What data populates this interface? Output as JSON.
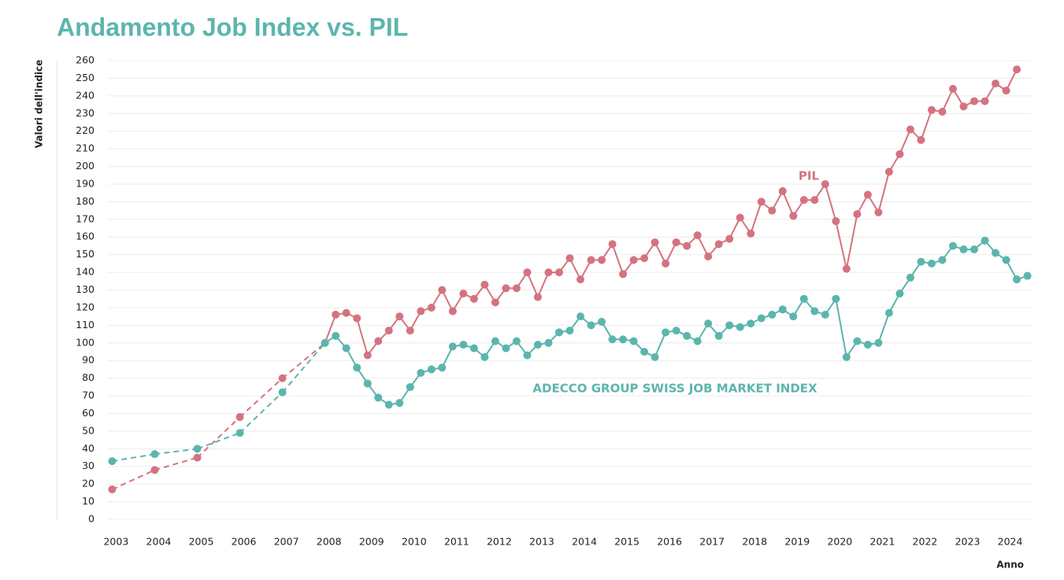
{
  "chart_data": {
    "type": "line",
    "title": "Andamento Job Index vs. PIL",
    "y_label": "Valori dell'indice",
    "x_label": "Anno",
    "dashed_until": 2008,
    "grid": true,
    "xlim": [
      2002.9,
      2024.6
    ],
    "xticks": [
      2003,
      2004,
      2005,
      2006,
      2007,
      2008,
      2009,
      2010,
      2011,
      2012,
      2013,
      2014,
      2015,
      2016,
      2017,
      2018,
      2019,
      2020,
      2021,
      2022,
      2023,
      2024
    ],
    "ylim": [
      0,
      260
    ],
    "yticks": [
      0,
      10,
      20,
      30,
      40,
      50,
      60,
      70,
      80,
      90,
      100,
      110,
      120,
      130,
      140,
      150,
      160,
      170,
      180,
      190,
      200,
      210,
      220,
      230,
      240,
      250,
      260
    ],
    "x": [
      2003,
      2004,
      2005,
      2006,
      2007,
      2008,
      2008.25,
      2008.5,
      2008.75,
      2009,
      2009.25,
      2009.5,
      2009.75,
      2010,
      2010.25,
      2010.5,
      2010.75,
      2011,
      2011.25,
      2011.5,
      2011.75,
      2012,
      2012.25,
      2012.5,
      2012.75,
      2013,
      2013.25,
      2013.5,
      2013.75,
      2014,
      2014.25,
      2014.5,
      2014.75,
      2015,
      2015.25,
      2015.5,
      2015.75,
      2016,
      2016.25,
      2016.5,
      2016.75,
      2017,
      2017.25,
      2017.5,
      2017.75,
      2018,
      2018.25,
      2018.5,
      2018.75,
      2019,
      2019.25,
      2019.5,
      2019.75,
      2020,
      2020.25,
      2020.5,
      2020.75,
      2021,
      2021.25,
      2021.5,
      2021.75,
      2022,
      2022.25,
      2022.5,
      2022.75,
      2023,
      2023.25,
      2023.5,
      2023.75,
      2024,
      2024.25,
      2024.5
    ],
    "series": [
      {
        "name": "PIL",
        "color": "#d4737f",
        "values": [
          17,
          28,
          35,
          58,
          80,
          100,
          116,
          117,
          114,
          93,
          101,
          107,
          115,
          107,
          118,
          120,
          130,
          118,
          128,
          125,
          133,
          123,
          131,
          131,
          140,
          126,
          140,
          140,
          148,
          136,
          147,
          147,
          156,
          139,
          147,
          148,
          157,
          145,
          157,
          155,
          161,
          149,
          156,
          159,
          171,
          162,
          180,
          175,
          186,
          172,
          181,
          181,
          190,
          169,
          142,
          173,
          184,
          174,
          197,
          207,
          221,
          215,
          232,
          231,
          244,
          234,
          237,
          237,
          247,
          243,
          255,
          null
        ]
      },
      {
        "name": "ADECCO GROUP SWISS JOB MARKET INDEX",
        "color": "#5bb5ad",
        "values": [
          33,
          37,
          40,
          49,
          72,
          100,
          104,
          97,
          86,
          77,
          69,
          65,
          66,
          75,
          83,
          85,
          86,
          98,
          99,
          97,
          92,
          101,
          97,
          101,
          93,
          99,
          100,
          106,
          107,
          115,
          110,
          112,
          102,
          102,
          101,
          95,
          92,
          106,
          107,
          104,
          101,
          111,
          104,
          110,
          109,
          111,
          114,
          116,
          119,
          115,
          125,
          118,
          116,
          125,
          92,
          101,
          99,
          100,
          117,
          128,
          137,
          146,
          145,
          147,
          155,
          153,
          153,
          158,
          151,
          147,
          136,
          138
        ]
      }
    ]
  }
}
